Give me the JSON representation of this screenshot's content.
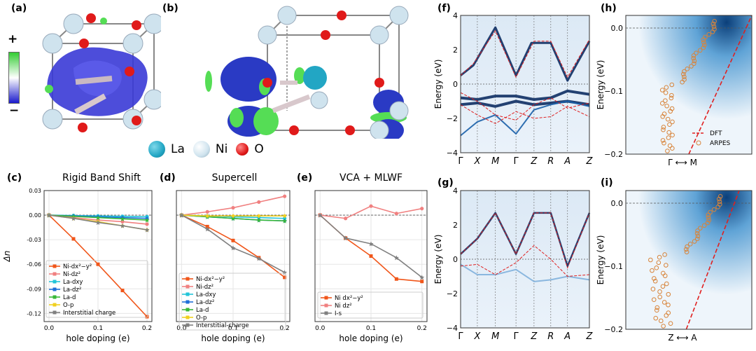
{
  "panels": {
    "a": "(a)",
    "b": "(b)",
    "c": "(c)",
    "d": "(d)",
    "e": "(e)",
    "f": "(f)",
    "g": "(g)",
    "h": "(h)",
    "i": "(i)"
  },
  "colorbar": {
    "plus": "+",
    "minus": "−",
    "top_color": "#33cc33",
    "mid_color": "#ffffff",
    "bottom_color": "#1a1acc"
  },
  "atoms": [
    {
      "label": "La",
      "color": "#22a6c4"
    },
    {
      "label": "Ni",
      "color": "#cfe3ee"
    },
    {
      "label": "O",
      "color": "#e01a1a"
    }
  ],
  "titles": {
    "c": "Rigid Band Shift",
    "d": "Supercell",
    "e": "VCA + MLWF"
  },
  "axes": {
    "hole_doping": "hole doping (e)",
    "delta_n": "Δn",
    "energy": "Energy (eV)",
    "gamma_m": "Γ ⟷ M",
    "z_a": "Z ⟷ A"
  },
  "chart_data": [
    {
      "panel": "c",
      "type": "line",
      "title": "Rigid Band Shift",
      "xlabel": "hole doping (e)",
      "ylabel": "Δn",
      "xlim": [
        -0.01,
        0.21
      ],
      "ylim": [
        -0.13,
        0.03
      ],
      "xticks": [
        "0.0",
        "0.1",
        "0.2"
      ],
      "yticks": [
        "0.03",
        "0.00",
        "-0.03",
        "-0.06",
        "-0.09",
        "-0.12"
      ],
      "x": [
        0.0,
        0.05,
        0.1,
        0.15,
        0.2
      ],
      "series": [
        {
          "name": "Ni-dx²−y²",
          "color": "#f0561a",
          "marker": "s",
          "values": [
            0,
            -0.029,
            -0.06,
            -0.092,
            -0.124
          ]
        },
        {
          "name": "Ni-dz²",
          "color": "#f08080",
          "marker": "o",
          "values": [
            0,
            -0.003,
            -0.006,
            -0.008,
            -0.011
          ]
        },
        {
          "name": "La-dxy",
          "color": "#22c4d8",
          "marker": "o",
          "values": [
            0,
            -0.0005,
            -0.001,
            -0.0015,
            -0.002
          ]
        },
        {
          "name": "La-dz²",
          "color": "#1e6fd9",
          "marker": "D",
          "values": [
            0,
            -0.001,
            -0.002,
            -0.003,
            -0.004
          ]
        },
        {
          "name": "La-d",
          "color": "#38b838",
          "marker": "*",
          "values": [
            0,
            -0.0015,
            -0.003,
            -0.0045,
            -0.006
          ]
        },
        {
          "name": "O-p",
          "color": "#f0d020",
          "marker": "D",
          "values": [
            0,
            -0.004,
            -0.008,
            -0.013,
            -0.018
          ]
        },
        {
          "name": "Interstitial charge",
          "color": "#808080",
          "marker": "*",
          "values": [
            0,
            -0.004,
            -0.009,
            -0.013,
            -0.018
          ]
        }
      ]
    },
    {
      "panel": "d",
      "type": "line",
      "title": "Supercell",
      "xlabel": "hole doping (e)",
      "ylabel": "",
      "xlim": [
        -0.01,
        0.21
      ],
      "ylim": [
        -0.13,
        0.03
      ],
      "xticks": [
        "0.0",
        "0.1",
        "0.2"
      ],
      "x": [
        0.0,
        0.05,
        0.1,
        0.15,
        0.2
      ],
      "series": [
        {
          "name": "Ni-dx²−y²",
          "color": "#f0561a",
          "marker": "s",
          "values": [
            0,
            -0.014,
            -0.031,
            -0.052,
            -0.076
          ]
        },
        {
          "name": "Ni-dz²",
          "color": "#f08080",
          "marker": "o",
          "values": [
            0,
            0.004,
            0.009,
            0.016,
            0.023
          ]
        },
        {
          "name": "La-dxy",
          "color": "#22c4d8",
          "marker": "o",
          "values": [
            0,
            -0.001,
            -0.002,
            -0.003,
            -0.004
          ]
        },
        {
          "name": "La-dz²",
          "color": "#1e6fd9",
          "marker": "D",
          "values": [
            0,
            -0.002,
            -0.004,
            -0.006,
            -0.007
          ]
        },
        {
          "name": "La-d",
          "color": "#38b838",
          "marker": "*",
          "values": [
            0,
            -0.002,
            -0.004,
            -0.006,
            -0.007
          ]
        },
        {
          "name": "O-p",
          "color": "#f0d020",
          "marker": "D",
          "values": [
            0,
            -0.001,
            -0.001,
            -0.001,
            -0.001
          ]
        },
        {
          "name": "Interstitial-charge",
          "color": "#808080",
          "marker": "*",
          "values": [
            0,
            -0.017,
            -0.04,
            -0.053,
            -0.07
          ]
        }
      ]
    },
    {
      "panel": "e",
      "type": "line",
      "title": "VCA + MLWF",
      "xlabel": "hole doping (e)",
      "ylabel": "",
      "xlim": [
        -0.01,
        0.21
      ],
      "ylim": [
        -0.13,
        0.03
      ],
      "xticks": [
        "0.0",
        "0.1",
        "0.2"
      ],
      "x": [
        0.0,
        0.05,
        0.1,
        0.15,
        0.2
      ],
      "series": [
        {
          "name": "Ni dx²−y²",
          "color": "#f0561a",
          "marker": "s",
          "values": [
            0,
            -0.028,
            -0.05,
            -0.078,
            -0.081
          ]
        },
        {
          "name": "Ni dz²",
          "color": "#f08080",
          "marker": "o",
          "values": [
            0,
            -0.004,
            0.011,
            0.002,
            0.008
          ]
        },
        {
          "name": "I-s",
          "color": "#808080",
          "marker": "*",
          "values": [
            0,
            -0.028,
            -0.035,
            -0.052,
            -0.076
          ]
        }
      ]
    },
    {
      "panel": "f",
      "type": "heatmap",
      "ylabel": "Energy (eV)",
      "ylim": [
        -4,
        4
      ],
      "yticks": [
        "4",
        "2",
        "0",
        "−2",
        "−4"
      ],
      "kpath": [
        "Γ",
        "X",
        "M",
        "Γ",
        "Z",
        "R",
        "A",
        "Z"
      ]
    },
    {
      "panel": "g",
      "type": "heatmap",
      "ylabel": "Energy (eV)",
      "ylim": [
        -4,
        4
      ],
      "yticks": [
        "4",
        "2",
        "0",
        "−2",
        "−4"
      ],
      "kpath": [
        "Γ",
        "X",
        "M",
        "Γ",
        "Z",
        "R",
        "A",
        "Z"
      ]
    },
    {
      "panel": "h",
      "type": "scatter",
      "ylabel": "Energy (eV)",
      "xlabel": "Γ ⟷ M",
      "ylim": [
        -0.2,
        0.02
      ],
      "yticks": [
        "0.0",
        "−0.1",
        "−0.2"
      ],
      "legend": [
        {
          "name": "DFT",
          "color": "#e02020"
        },
        {
          "name": "ARPES",
          "color": "#d8843a"
        }
      ]
    },
    {
      "panel": "i",
      "type": "scatter",
      "ylabel": "Energy (eV)",
      "xlabel": "Z ⟷ A",
      "ylim": [
        -0.2,
        0.02
      ],
      "yticks": [
        "0.0",
        "−0.1",
        "−0.2"
      ]
    }
  ]
}
